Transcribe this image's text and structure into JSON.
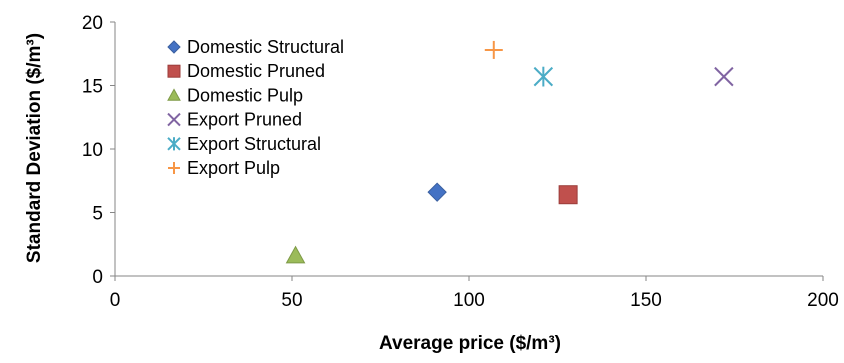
{
  "chart_data": {
    "type": "scatter",
    "title": "",
    "xlabel": "Average price ($/m³)",
    "ylabel": "Standard Deviation ($/m³)",
    "xlim": [
      0,
      200
    ],
    "ylim": [
      0,
      20
    ],
    "x_ticks": [
      "0",
      "50",
      "100",
      "150",
      "200"
    ],
    "y_ticks": [
      "0",
      "5",
      "10",
      "15",
      "20"
    ],
    "grid": false,
    "legend_position": "top-left",
    "series": [
      {
        "name": "Domestic Structural",
        "marker": "diamond",
        "color": "#4472C4",
        "x": [
          91
        ],
        "y": [
          6.6
        ]
      },
      {
        "name": "Domestic Pruned",
        "marker": "square",
        "color": "#C0504D",
        "x": [
          128
        ],
        "y": [
          6.4
        ]
      },
      {
        "name": "Domestic Pulp",
        "marker": "triangle",
        "color": "#9BBB59",
        "x": [
          51
        ],
        "y": [
          1.6
        ]
      },
      {
        "name": "Export Pruned",
        "marker": "x",
        "color": "#8064A2",
        "x": [
          172
        ],
        "y": [
          15.7
        ]
      },
      {
        "name": "Export Structural",
        "marker": "asterisk",
        "color": "#4BACC6",
        "x": [
          121
        ],
        "y": [
          15.7
        ]
      },
      {
        "name": "Export Pulp",
        "marker": "plus",
        "color": "#F79646",
        "x": [
          107
        ],
        "y": [
          17.8
        ]
      }
    ]
  }
}
